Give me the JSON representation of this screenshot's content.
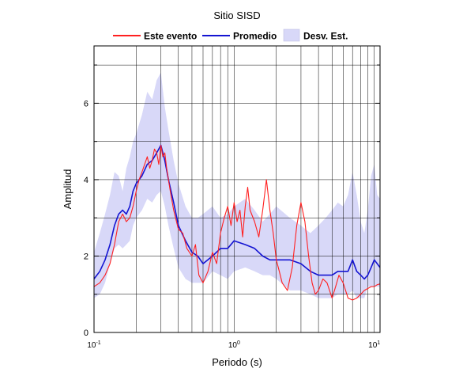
{
  "chart_data": {
    "type": "line",
    "title": "Sitio SISD",
    "xlabel": "Periodo (s)",
    "ylabel": "Amplitud",
    "x_scale": "log",
    "xlim": [
      0.1,
      11
    ],
    "ylim": [
      0,
      7.5
    ],
    "grid": true,
    "legend_position": "top",
    "x_ticks": [
      {
        "value": 0.1,
        "base": "10",
        "exp": "-1"
      },
      {
        "value": 1,
        "base": "10",
        "exp": "0"
      },
      {
        "value": 10,
        "base": "10",
        "exp": "1"
      }
    ],
    "y_ticks": [
      {
        "value": 0,
        "label": "0"
      },
      {
        "value": 2,
        "label": "2"
      },
      {
        "value": 4,
        "label": "4"
      },
      {
        "value": 6,
        "label": "6"
      }
    ],
    "legend": [
      {
        "label": "Este evento",
        "kind": "line",
        "color": "#ff2020"
      },
      {
        "label": "Promedio",
        "kind": "line",
        "color": "#1414d2"
      },
      {
        "label": "Desv. Est.",
        "kind": "band",
        "color": "#d8d8f8"
      }
    ],
    "series": [
      {
        "name": "Desv. Est.",
        "kind": "band",
        "color": "#d8d8f8",
        "x": [
          0.1,
          0.11,
          0.12,
          0.13,
          0.14,
          0.15,
          0.16,
          0.17,
          0.18,
          0.19,
          0.2,
          0.22,
          0.24,
          0.26,
          0.28,
          0.3,
          0.32,
          0.34,
          0.37,
          0.4,
          0.45,
          0.5,
          0.55,
          0.6,
          0.7,
          0.8,
          0.9,
          1.0,
          1.2,
          1.4,
          1.6,
          1.8,
          2.0,
          2.5,
          3.0,
          3.5,
          4.0,
          4.5,
          5.0,
          5.5,
          6.0,
          6.5,
          7.0,
          7.5,
          8.0,
          8.5,
          9.0,
          9.5,
          10.0,
          10.5,
          11.0
        ],
        "upper": [
          2.1,
          2.6,
          3.1,
          3.6,
          4.2,
          4.1,
          3.7,
          4.3,
          4.6,
          5.0,
          5.2,
          5.7,
          6.3,
          6.1,
          6.6,
          6.8,
          5.9,
          5.3,
          4.5,
          3.9,
          3.3,
          3.0,
          3.0,
          3.1,
          3.3,
          3.0,
          3.1,
          3.3,
          3.5,
          3.2,
          2.9,
          3.1,
          3.3,
          3.0,
          2.8,
          2.6,
          2.8,
          3.0,
          3.2,
          3.4,
          3.3,
          3.6,
          4.2,
          3.6,
          2.9,
          2.6,
          3.2,
          4.1,
          4.4,
          3.6,
          3.5
        ],
        "lower": [
          0.9,
          1.0,
          1.3,
          1.8,
          2.2,
          2.3,
          2.2,
          2.3,
          2.4,
          2.8,
          3.0,
          3.2,
          3.5,
          3.4,
          3.6,
          3.7,
          3.3,
          2.8,
          2.2,
          1.7,
          1.4,
          1.3,
          1.3,
          1.3,
          1.6,
          1.5,
          1.4,
          1.6,
          1.7,
          1.6,
          1.5,
          1.5,
          1.4,
          1.1,
          1.1,
          1.0,
          0.9,
          0.9,
          0.9,
          1.0,
          1.0,
          1.0,
          1.1,
          0.9,
          0.9,
          0.9,
          1.2,
          1.2,
          1.2,
          1.2,
          1.2
        ]
      },
      {
        "name": "Promedio",
        "kind": "line",
        "color": "#1414d2",
        "x": [
          0.1,
          0.11,
          0.12,
          0.13,
          0.14,
          0.15,
          0.16,
          0.17,
          0.18,
          0.19,
          0.2,
          0.22,
          0.24,
          0.26,
          0.28,
          0.3,
          0.32,
          0.34,
          0.37,
          0.4,
          0.45,
          0.5,
          0.55,
          0.6,
          0.7,
          0.8,
          0.9,
          1.0,
          1.2,
          1.4,
          1.6,
          1.8,
          2.0,
          2.5,
          3.0,
          3.5,
          4.0,
          4.5,
          5.0,
          5.5,
          6.0,
          6.5,
          7.0,
          7.5,
          8.0,
          8.5,
          9.0,
          9.5,
          10.0,
          10.5,
          11.0
        ],
        "y": [
          1.4,
          1.6,
          1.9,
          2.3,
          2.8,
          3.1,
          3.2,
          3.1,
          3.3,
          3.7,
          3.9,
          4.1,
          4.4,
          4.5,
          4.7,
          4.9,
          4.5,
          4.0,
          3.4,
          2.8,
          2.4,
          2.1,
          2.0,
          1.8,
          2.0,
          2.2,
          2.2,
          2.4,
          2.3,
          2.2,
          2.0,
          1.9,
          1.9,
          1.9,
          1.8,
          1.6,
          1.5,
          1.5,
          1.5,
          1.6,
          1.6,
          1.6,
          1.9,
          1.6,
          1.5,
          1.4,
          1.5,
          1.7,
          1.9,
          1.8,
          1.7
        ]
      },
      {
        "name": "Este evento",
        "kind": "line",
        "color": "#ff2020",
        "x": [
          0.1,
          0.11,
          0.12,
          0.13,
          0.14,
          0.15,
          0.16,
          0.17,
          0.18,
          0.19,
          0.2,
          0.21,
          0.22,
          0.23,
          0.24,
          0.25,
          0.26,
          0.27,
          0.28,
          0.29,
          0.3,
          0.31,
          0.32,
          0.33,
          0.34,
          0.35,
          0.37,
          0.4,
          0.43,
          0.46,
          0.5,
          0.53,
          0.56,
          0.6,
          0.65,
          0.7,
          0.75,
          0.8,
          0.85,
          0.9,
          0.95,
          1.0,
          1.05,
          1.1,
          1.15,
          1.2,
          1.25,
          1.3,
          1.4,
          1.5,
          1.6,
          1.7,
          1.8,
          1.9,
          2.0,
          2.1,
          2.2,
          2.4,
          2.6,
          2.8,
          3.0,
          3.2,
          3.4,
          3.6,
          3.8,
          4.0,
          4.3,
          4.6,
          5.0,
          5.3,
          5.6,
          6.0,
          6.5,
          7.0,
          7.5,
          8.0,
          8.5,
          9.0,
          9.5,
          10.0,
          10.5,
          11.0
        ],
        "y": [
          1.2,
          1.3,
          1.5,
          1.8,
          2.3,
          2.9,
          3.1,
          2.9,
          3.0,
          3.3,
          3.7,
          4.0,
          4.2,
          4.4,
          4.6,
          4.3,
          4.5,
          4.8,
          4.7,
          4.4,
          4.9,
          4.6,
          4.7,
          4.3,
          4.0,
          3.7,
          3.2,
          2.7,
          2.6,
          2.2,
          2.0,
          2.3,
          1.5,
          1.3,
          1.6,
          2.1,
          1.8,
          2.6,
          3.0,
          3.3,
          2.8,
          3.4,
          2.9,
          3.2,
          2.5,
          3.3,
          3.8,
          3.2,
          2.9,
          2.5,
          3.2,
          4.0,
          3.2,
          2.6,
          1.9,
          1.6,
          1.3,
          1.1,
          1.7,
          2.8,
          3.4,
          2.9,
          2.0,
          1.3,
          1.0,
          1.1,
          1.4,
          1.3,
          0.9,
          1.2,
          1.5,
          1.3,
          0.9,
          0.85,
          0.9,
          1.0,
          1.1,
          1.15,
          1.2,
          1.2,
          1.25,
          1.27
        ]
      }
    ]
  }
}
